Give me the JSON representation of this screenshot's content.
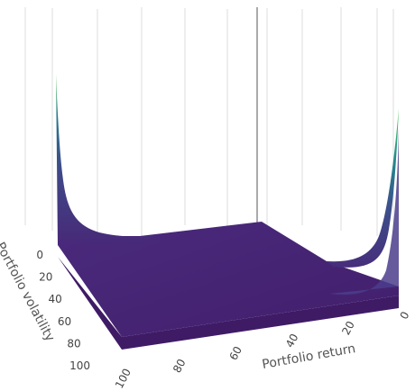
{
  "chart_data": {
    "type": "surface",
    "colorscale": "viridis",
    "x_axis": {
      "title": "Portfolio return",
      "ticks": [
        0,
        20,
        40,
        60,
        80,
        100
      ],
      "range": [
        0,
        100
      ]
    },
    "y_axis": {
      "title": "Portfolio volatility",
      "ticks": [
        0,
        20,
        40,
        60,
        80,
        100
      ],
      "range": [
        0,
        100
      ]
    },
    "z_axis": {
      "title": "",
      "ticks": []
    },
    "surface": {
      "description_values": "Flat low plateau over most of the grid with sharp rising walls along the return = 0 and volatility = 0 edges, peaking at the corners",
      "plateau_level": 0.02,
      "edge_peak_level": 1.0
    },
    "grid": true,
    "legend": "none"
  },
  "colors": {
    "plateau": "#46206f",
    "mid": "#3b528b",
    "high": "#21908d",
    "peak": "#5ec962",
    "grid": "#d9d9d9"
  }
}
